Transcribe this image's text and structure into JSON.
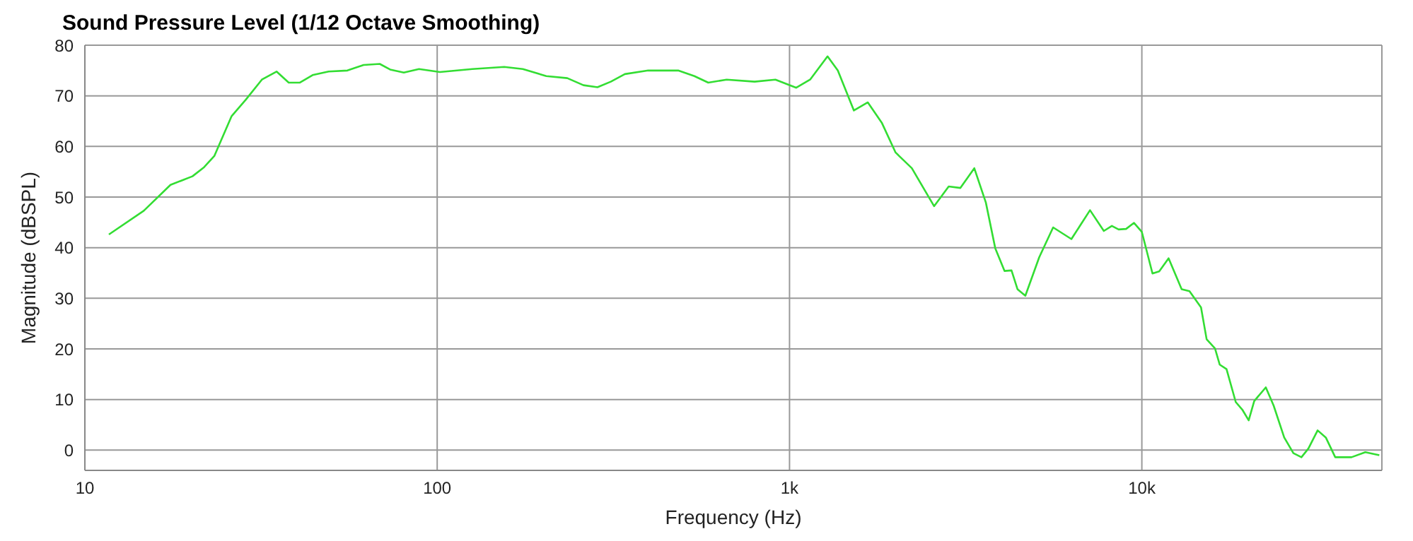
{
  "chart_data": {
    "type": "line",
    "title": "Sound Pressure Level (1/12 Octave Smoothing)",
    "xlabel": "Frequency (Hz)",
    "ylabel": "Magnitude (dBSPL)",
    "log": "x",
    "grid": true,
    "marker": "none",
    "line_style": "solid",
    "xlim": [
      10,
      48000
    ],
    "xticks": [
      10,
      100,
      {
        "value": 1000,
        "label": "1k"
      },
      {
        "value": 10000,
        "label": "10k"
      }
    ],
    "ylim": [
      -4,
      80
    ],
    "yticks": [
      0,
      10,
      20,
      30,
      40,
      50,
      60,
      70,
      80
    ],
    "x": [
      11.7,
      14.7,
      17.5,
      20.2,
      21.8,
      23.3,
      26.1,
      28.6,
      31.8,
      35,
      37.9,
      40.7,
      44.3,
      49.2,
      55.6,
      61.8,
      68.7,
      73.5,
      80.4,
      88.8,
      101.8,
      125.8,
      155,
      175,
      204,
      234,
      260,
      285,
      311,
      341,
      397,
      483,
      537,
      588,
      663,
      796,
      912,
      1045,
      1144,
      1282,
      1371,
      1523,
      1668,
      1827,
      2000,
      2224,
      2572,
      2830,
      3055,
      3345,
      3608,
      3836,
      4077,
      4266,
      4436,
      4670,
      5113,
      5600,
      6310,
      7126,
      7800,
      8220,
      8590,
      9020,
      9500,
      10000,
      10720,
      11200,
      11910,
      12970,
      13650,
      14720,
      15270,
      16130,
      16630,
      17390,
      18470,
      19320,
      20100,
      20840,
      22480,
      23660,
      25350,
      26920,
      28370,
      29690,
      31540,
      33270,
      35390,
      39360,
      43080,
      47200
    ],
    "series": [
      {
        "color": "#33dd33",
        "values": [
          42.6,
          47.3,
          52.4,
          54.1,
          55.9,
          58.1,
          66,
          69.2,
          73.2,
          74.8,
          72.6,
          72.6,
          74.1,
          74.8,
          75,
          76.1,
          76.3,
          75.2,
          74.6,
          75.3,
          74.7,
          75.3,
          75.7,
          75.3,
          73.9,
          73.5,
          72.1,
          71.7,
          72.8,
          74.3,
          75,
          75,
          73.9,
          72.6,
          73.2,
          72.8,
          73.2,
          71.6,
          73.2,
          77.8,
          75,
          67.1,
          68.7,
          64.7,
          58.8,
          55.7,
          48.2,
          52.1,
          51.8,
          55.7,
          48.9,
          39.9,
          35.4,
          35.5,
          31.8,
          30.5,
          38.1,
          44,
          41.7,
          47.4,
          43.3,
          44.3,
          43.6,
          43.7,
          44.9,
          43.1,
          34.9,
          35.3,
          37.9,
          31.8,
          31.4,
          28.2,
          21.9,
          20.1,
          16.9,
          16,
          9.5,
          7.9,
          5.9,
          9.7,
          12.4,
          8.8,
          2.5,
          -0.6,
          -1.4,
          0.3,
          3.9,
          2.5,
          -1.4,
          -1.4,
          -0.4,
          -1
        ]
      }
    ]
  }
}
